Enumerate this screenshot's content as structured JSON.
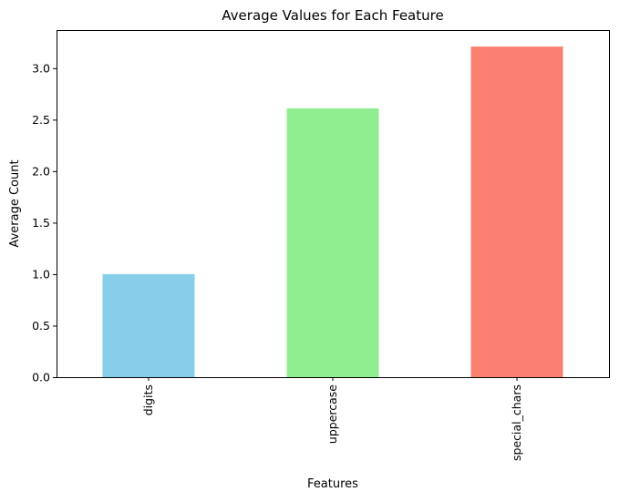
{
  "chart_data": {
    "type": "bar",
    "title": "Average Values for Each Feature",
    "xlabel": "Features",
    "ylabel": "Average Count",
    "categories": [
      "digits",
      "uppercase",
      "special_chars"
    ],
    "values": [
      1.0,
      2.61,
      3.21
    ],
    "colors": [
      "#87ceeb",
      "#90ee90",
      "#fa8072"
    ],
    "ylim": [
      0,
      3.37
    ],
    "yticks": [
      0.0,
      0.5,
      1.0,
      1.5,
      2.0,
      2.5,
      3.0
    ],
    "ytick_labels": [
      "0.0",
      "0.5",
      "1.0",
      "1.5",
      "2.0",
      "2.5",
      "3.0"
    ],
    "xtick_rotation": "vertical",
    "grid": false,
    "legend": "none"
  }
}
